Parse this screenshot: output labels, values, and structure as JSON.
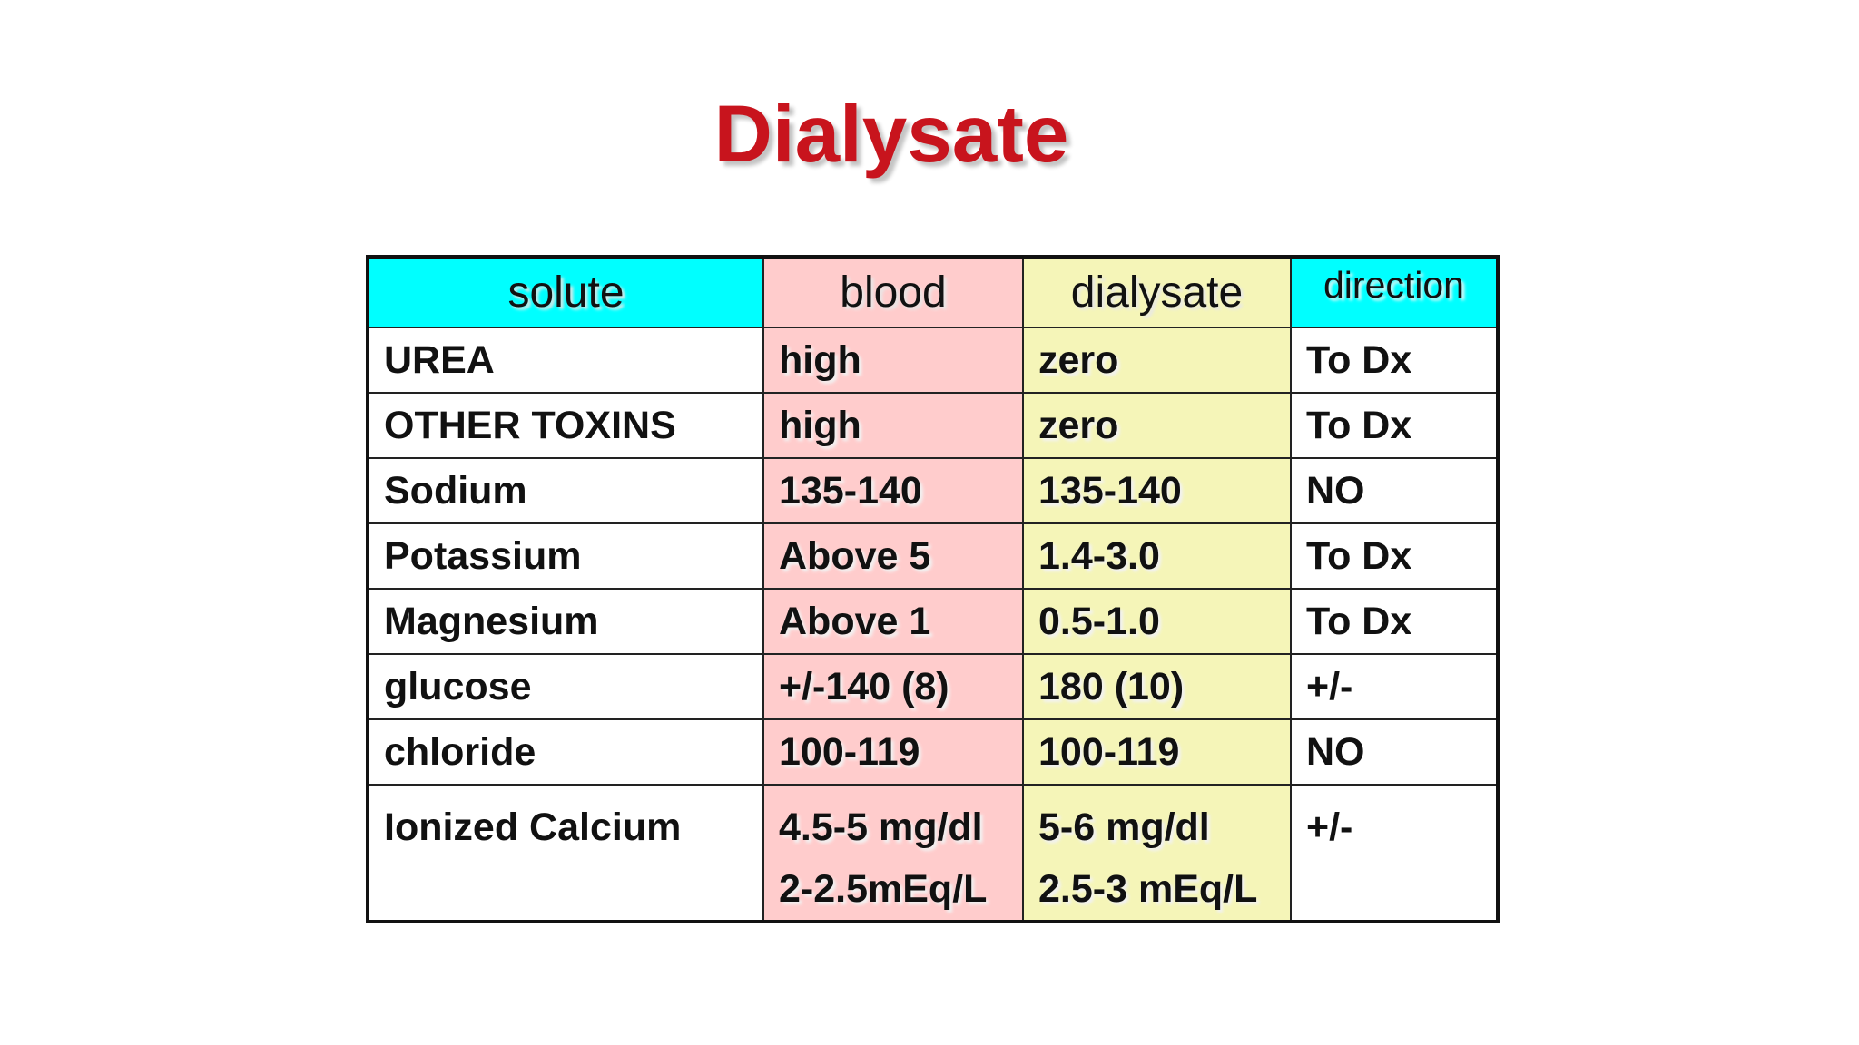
{
  "title": "Dialysate",
  "table": {
    "headers": [
      "solute",
      "blood",
      "dialysate",
      "direction"
    ],
    "rows": [
      [
        "UREA",
        "high",
        "zero",
        "To Dx"
      ],
      [
        "OTHER TOXINS",
        "high",
        "zero",
        "To Dx"
      ],
      [
        "Sodium",
        "135-140",
        "135-140",
        "NO"
      ],
      [
        "Potassium",
        "Above 5",
        "1.4-3.0",
        "To Dx"
      ],
      [
        "Magnesium",
        "Above 1",
        "0.5-1.0",
        "To Dx"
      ],
      [
        "glucose",
        "+/-140 (8)",
        "180 (10)",
        "+/-"
      ],
      [
        "chloride",
        "100-119",
        "100-119",
        "NO"
      ]
    ],
    "last_row": {
      "solute": "Ionized Calcium",
      "blood": [
        "4.5-5 mg/dl",
        "2-2.5mEq/L"
      ],
      "dialysate": [
        "5-6 mg/dl",
        "2.5-3 mEq/L"
      ],
      "direction": "+/-"
    }
  },
  "colors": {
    "title": "#c8141d",
    "header_solute": "#00ffff",
    "header_direction": "#00ffff",
    "blood_column": "#ffcccc",
    "dialysate_column": "#f5f5b8"
  }
}
